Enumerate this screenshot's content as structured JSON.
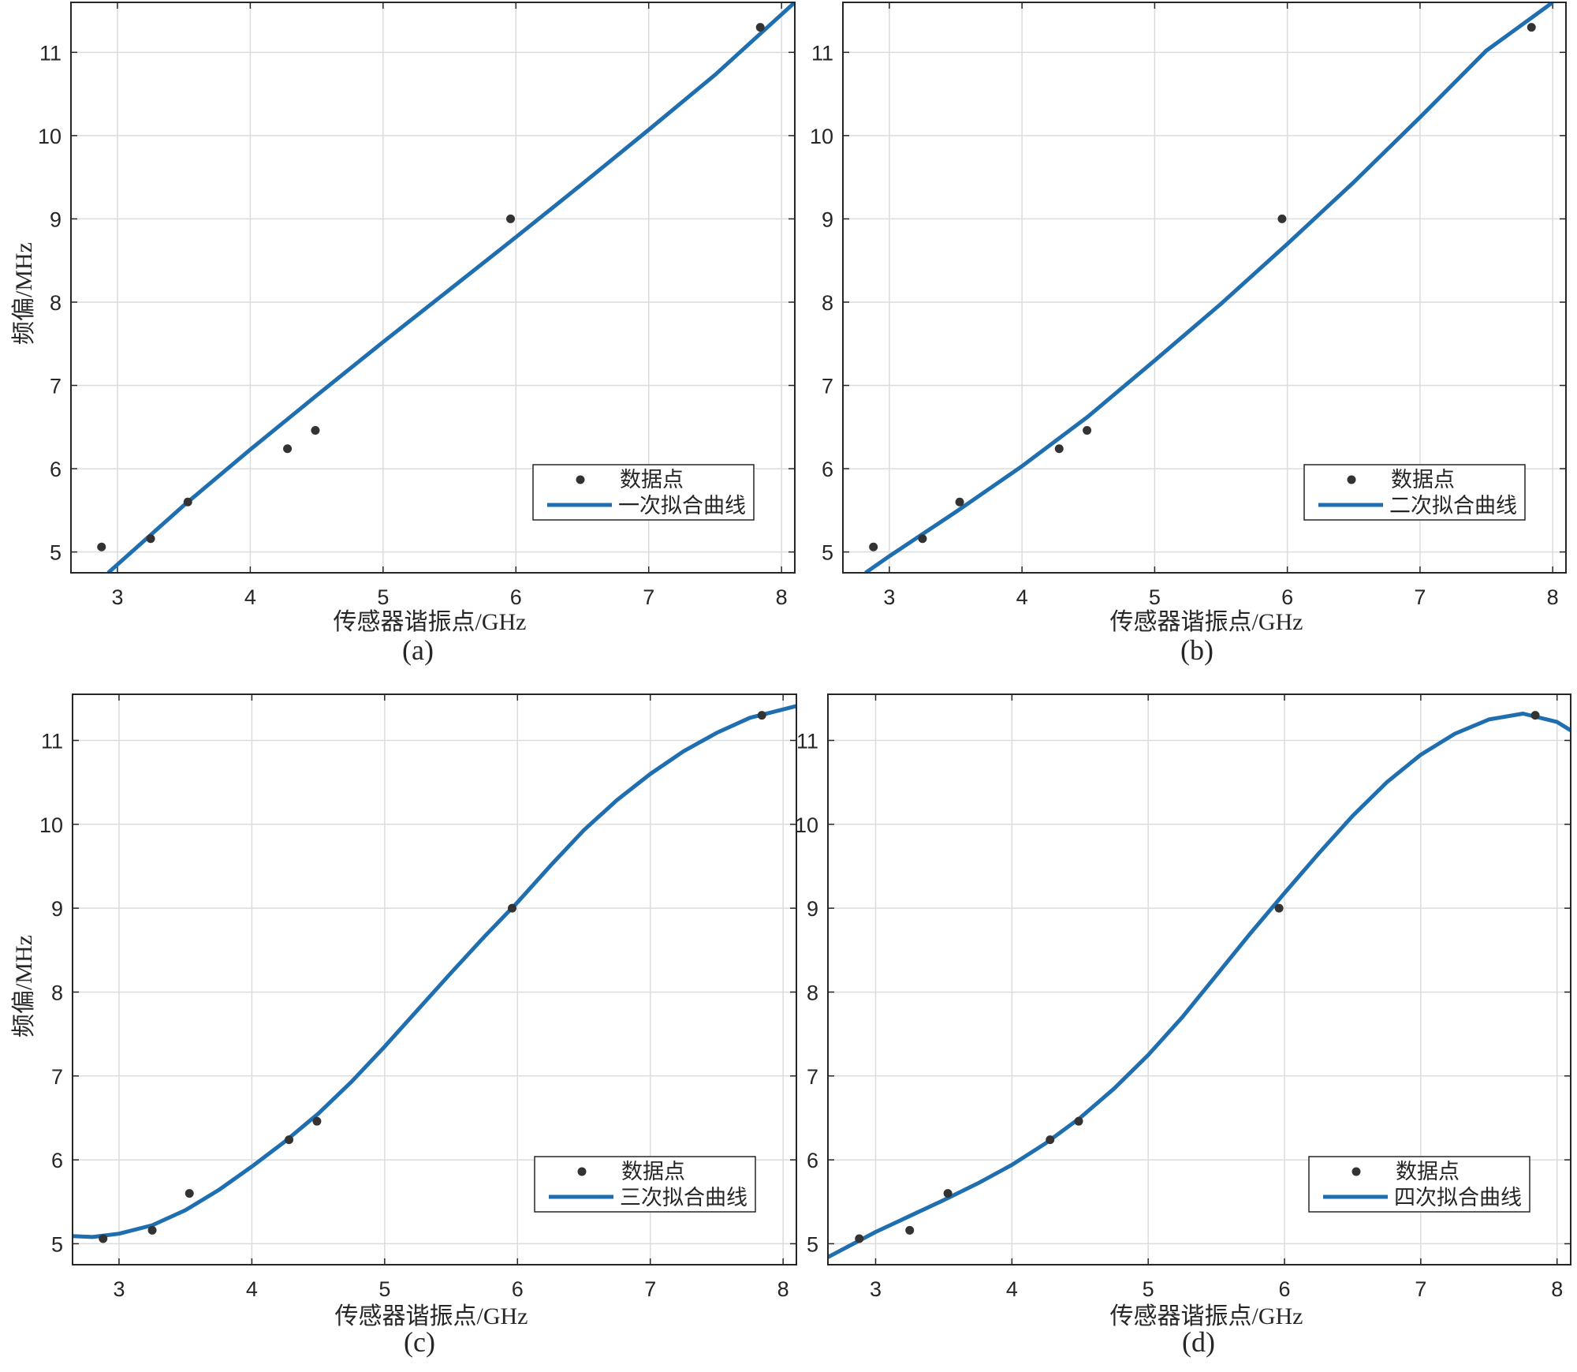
{
  "figure": {
    "points_legend": "数据点",
    "x_label": "传感器谐振点/GHz",
    "y_label": "频偏/MHz",
    "line_color": "#1f6fb0",
    "marker_color": "#333333",
    "grid_color": "#dcdcdc"
  },
  "chart_data": [
    {
      "type": "scatter",
      "caption": "(a)",
      "title": "",
      "xlabel": "传感器谐振点/GHz",
      "ylabel": "频偏/MHz",
      "xlim": [
        2.65,
        8.1
      ],
      "ylim": [
        4.75,
        11.6
      ],
      "xticks": [
        3,
        4,
        5,
        6,
        7,
        8
      ],
      "yticks": [
        5,
        6,
        7,
        8,
        9,
        10,
        11
      ],
      "grid": true,
      "legend_position": "bottom-right",
      "series": [
        {
          "name": "数据点",
          "kind": "points",
          "x": [
            2.88,
            3.25,
            3.53,
            4.28,
            4.49,
            5.96,
            7.84
          ],
          "y": [
            5.06,
            5.16,
            5.6,
            6.24,
            6.46,
            9.0,
            11.3
          ]
        },
        {
          "name": "一次拟合曲线",
          "kind": "line",
          "x": [
            2.93,
            3.5,
            4.0,
            4.5,
            5.0,
            5.5,
            6.0,
            6.5,
            7.0,
            7.5,
            8.1
          ],
          "y": [
            4.75,
            5.56,
            6.23,
            6.88,
            7.52,
            8.15,
            8.78,
            9.42,
            10.07,
            10.73,
            11.6
          ]
        }
      ]
    },
    {
      "type": "scatter",
      "caption": "(b)",
      "title": "",
      "xlabel": "传感器谐振点/GHz",
      "ylabel": "",
      "xlim": [
        2.65,
        8.1
      ],
      "ylim": [
        4.75,
        11.6
      ],
      "xticks": [
        3,
        4,
        5,
        6,
        7,
        8
      ],
      "yticks": [
        5,
        6,
        7,
        8,
        9,
        10,
        11
      ],
      "grid": true,
      "legend_position": "bottom-right",
      "series": [
        {
          "name": "数据点",
          "kind": "points",
          "x": [
            2.88,
            3.25,
            3.53,
            4.28,
            4.49,
            5.96,
            7.84
          ],
          "y": [
            5.06,
            5.16,
            5.6,
            6.24,
            6.46,
            9.0,
            11.3
          ]
        },
        {
          "name": "二次拟合曲线",
          "kind": "line",
          "x": [
            2.82,
            3.0,
            3.5,
            4.0,
            4.5,
            5.0,
            5.5,
            6.0,
            6.5,
            7.0,
            7.5,
            8.0
          ],
          "y": [
            4.75,
            4.95,
            5.48,
            6.03,
            6.63,
            7.3,
            7.98,
            8.7,
            9.44,
            10.22,
            11.02,
            11.6
          ]
        }
      ]
    },
    {
      "type": "scatter",
      "caption": "(c)",
      "title": "",
      "xlabel": "传感器谐振点/GHz",
      "ylabel": "频偏/MHz",
      "xlim": [
        2.65,
        8.1
      ],
      "ylim": [
        4.75,
        11.55
      ],
      "xticks": [
        3,
        4,
        5,
        6,
        7,
        8
      ],
      "yticks": [
        5,
        6,
        7,
        8,
        9,
        10,
        11
      ],
      "grid": true,
      "legend_position": "bottom-right",
      "series": [
        {
          "name": "数据点",
          "kind": "points",
          "x": [
            2.88,
            3.25,
            3.53,
            4.28,
            4.49,
            5.96,
            7.84
          ],
          "y": [
            5.06,
            5.16,
            5.6,
            6.24,
            6.46,
            9.0,
            11.3
          ]
        },
        {
          "name": "三次拟合曲线",
          "kind": "line",
          "x": [
            2.65,
            2.8,
            3.0,
            3.25,
            3.5,
            3.75,
            4.0,
            4.25,
            4.5,
            4.75,
            5.0,
            5.25,
            5.5,
            5.75,
            6.0,
            6.25,
            6.5,
            6.75,
            7.0,
            7.25,
            7.5,
            7.75,
            8.1
          ],
          "y": [
            5.09,
            5.08,
            5.12,
            5.22,
            5.4,
            5.64,
            5.92,
            6.22,
            6.55,
            6.93,
            7.35,
            7.79,
            8.23,
            8.66,
            9.07,
            9.51,
            9.93,
            10.29,
            10.6,
            10.87,
            11.09,
            11.27,
            11.41
          ]
        }
      ]
    },
    {
      "type": "scatter",
      "caption": "(d)",
      "title": "",
      "xlabel": "传感器谐振点/GHz",
      "ylabel": "",
      "xlim": [
        2.65,
        8.1
      ],
      "ylim": [
        4.75,
        11.55
      ],
      "xticks": [
        3,
        4,
        5,
        6,
        7,
        8
      ],
      "yticks": [
        5,
        6,
        7,
        8,
        9,
        10,
        11
      ],
      "grid": true,
      "legend_position": "bottom-right",
      "series": [
        {
          "name": "数据点",
          "kind": "points",
          "x": [
            2.88,
            3.25,
            3.53,
            4.28,
            4.49,
            5.96,
            7.84
          ],
          "y": [
            5.06,
            5.16,
            5.6,
            6.24,
            6.46,
            9.0,
            11.3
          ]
        },
        {
          "name": "四次拟合曲线",
          "kind": "line",
          "x": [
            2.65,
            3.0,
            3.25,
            3.5,
            3.75,
            4.0,
            4.25,
            4.5,
            4.75,
            5.0,
            5.25,
            5.5,
            5.75,
            6.0,
            6.25,
            6.5,
            6.75,
            7.0,
            7.25,
            7.5,
            7.75,
            8.0,
            8.1
          ],
          "y": [
            4.84,
            5.14,
            5.33,
            5.52,
            5.72,
            5.94,
            6.2,
            6.5,
            6.85,
            7.25,
            7.7,
            8.2,
            8.7,
            9.18,
            9.65,
            10.1,
            10.5,
            10.83,
            11.08,
            11.25,
            11.32,
            11.22,
            11.12
          ]
        }
      ]
    }
  ]
}
